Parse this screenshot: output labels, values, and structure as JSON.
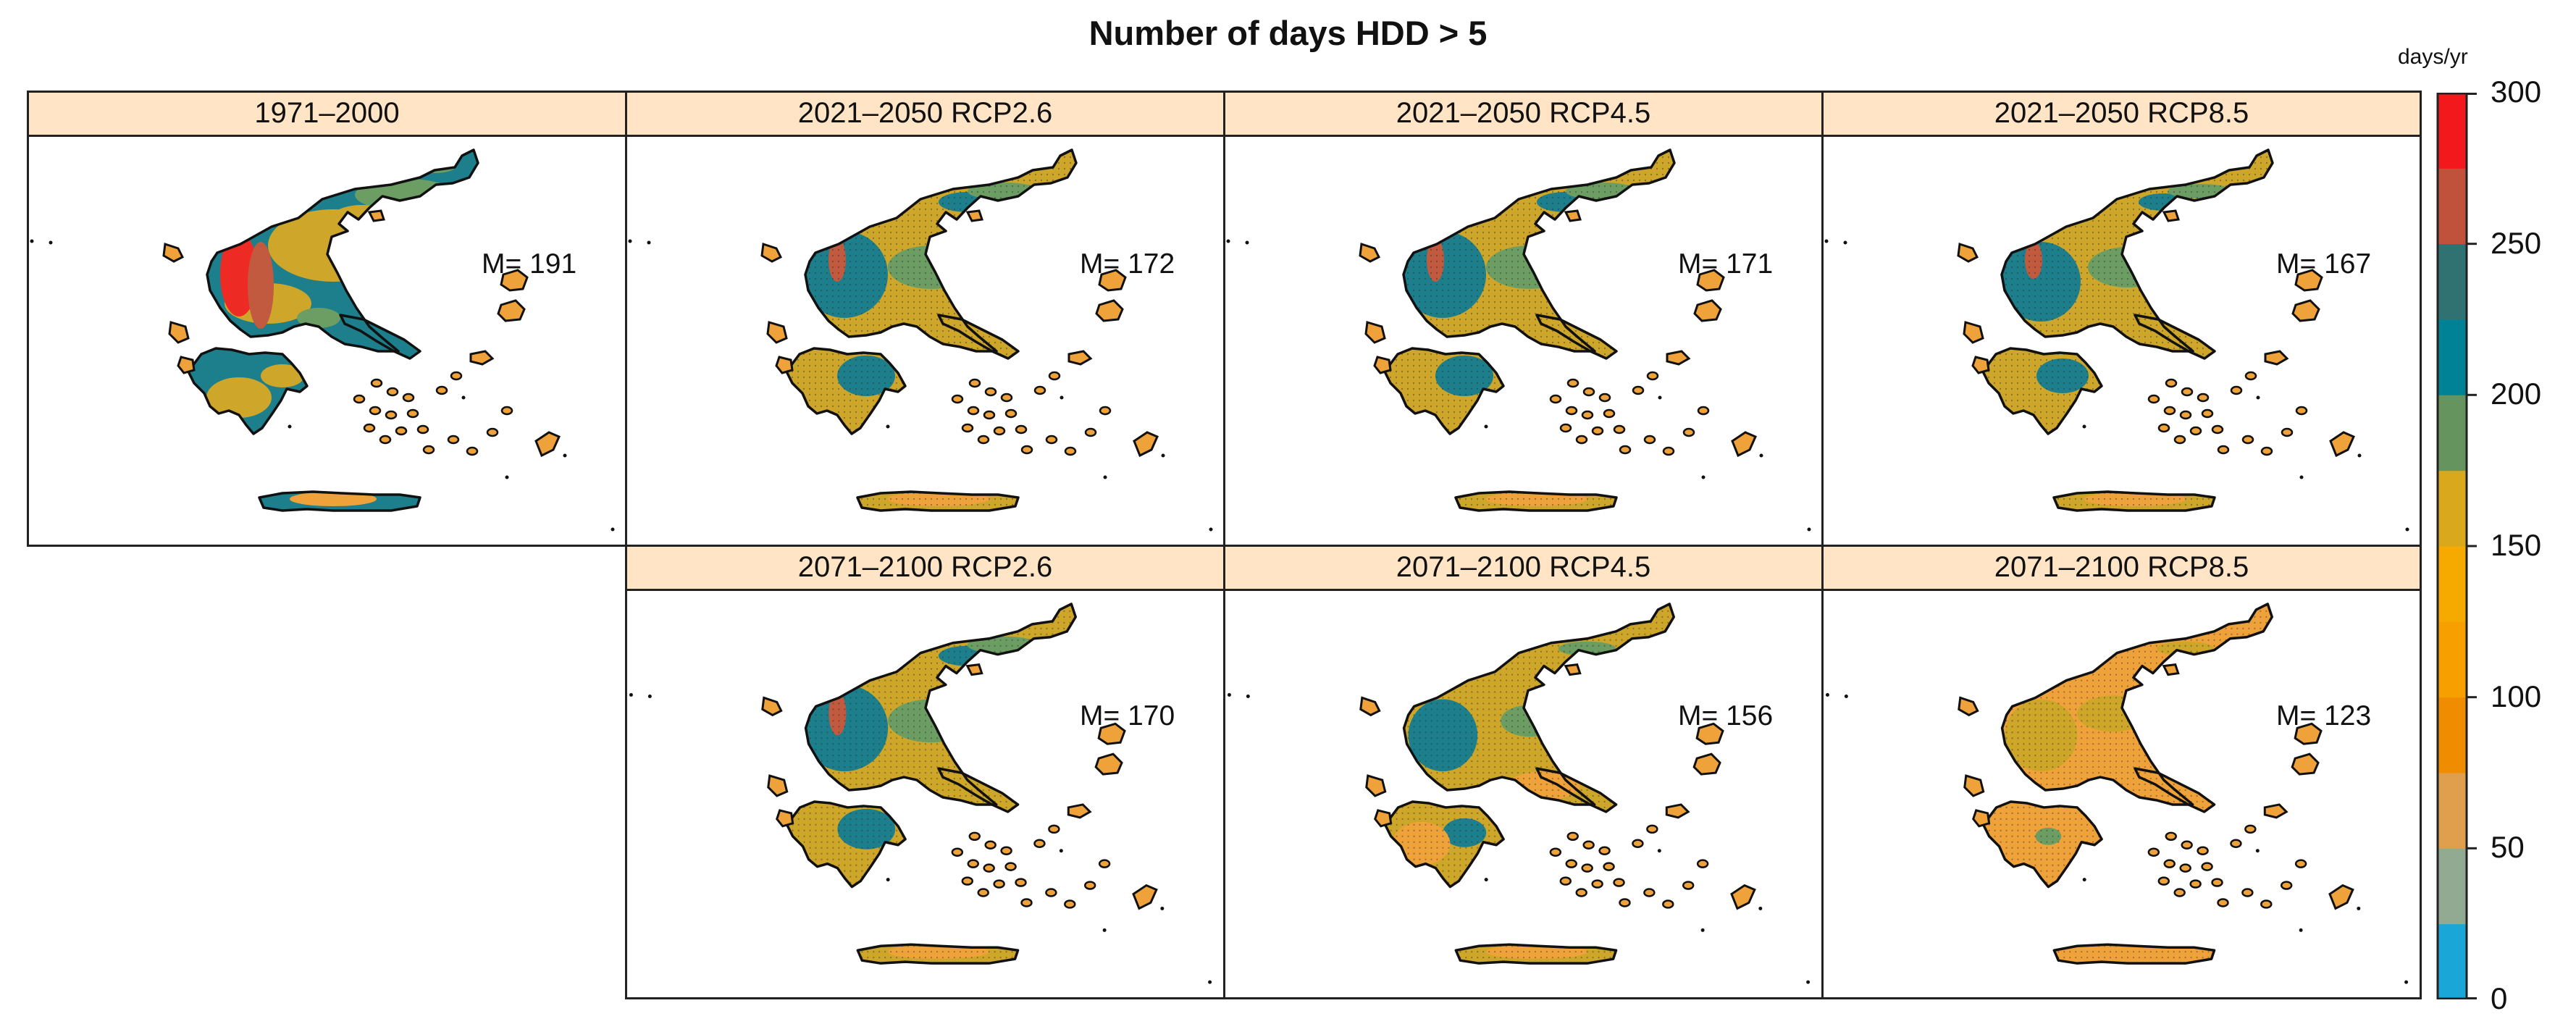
{
  "title": "Number of days HDD > 5",
  "panels": [
    {
      "label": "1971–2000",
      "mean": "M= 191"
    },
    {
      "label": "2021–2050 RCP2.6",
      "mean": "M= 172"
    },
    {
      "label": "2021–2050 RCP4.5",
      "mean": "M= 171"
    },
    {
      "label": "2021–2050 RCP8.5",
      "mean": "M= 167"
    },
    {
      "label": "2071–2100 RCP2.6",
      "mean": "M= 170"
    },
    {
      "label": "2071–2100 RCP4.5",
      "mean": "M= 156"
    },
    {
      "label": "2071–2100 RCP8.5",
      "mean": "M= 123"
    }
  ],
  "colorbar": {
    "unit": "days/yr",
    "range": [
      0,
      300
    ],
    "ticks": [
      "300",
      "250",
      "200",
      "150",
      "100",
      "50",
      "0"
    ],
    "colors": [
      "#1aa6d6",
      "#93aa92",
      "#df9f4d",
      "#f08c00",
      "#f89f00",
      "#f6aa00",
      "#daa81c",
      "#66945e",
      "#008296",
      "#307272",
      "#c0513b",
      "#f2181b"
    ]
  },
  "palette": {
    "orange": "#f0a23a",
    "olive": "#cda62a",
    "green": "#6c9e63",
    "teal": "#1d7f8c",
    "brown": "#c15a3e",
    "red": "#ee2a24"
  }
}
